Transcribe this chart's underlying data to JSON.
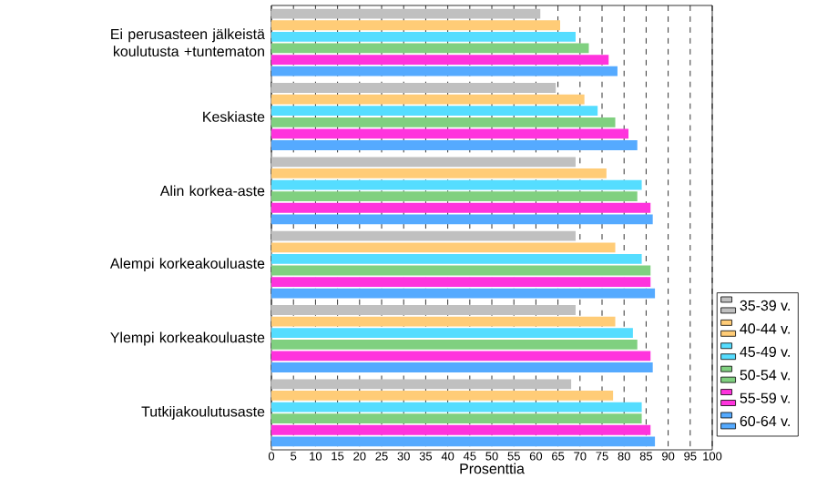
{
  "chart_data": {
    "type": "bar",
    "orientation": "horizontal",
    "xlabel": "Prosenttia",
    "categories": [
      "Ei perusasteen jälkeistä koulutusta  +tuntematon",
      "Keskiaste",
      "Alin korkea-aste",
      "Alempi korkeakouluaste",
      "Ylempi korkeakouluaste",
      "Tutkijakoulutusaste"
    ],
    "series": [
      {
        "name": "35-39 v.",
        "color": "#c0c0c0",
        "values": [
          61,
          64.5,
          69,
          69,
          69,
          68
        ]
      },
      {
        "name": "40-44 v.",
        "color": "#ffcc77",
        "values": [
          65.5,
          71,
          76,
          78,
          78,
          77.5
        ]
      },
      {
        "name": "45-49 v.",
        "color": "#55ddff",
        "values": [
          69,
          74,
          84,
          84,
          82,
          84
        ]
      },
      {
        "name": "50-54 v.",
        "color": "#80d080",
        "values": [
          72,
          78,
          83,
          86,
          83,
          84
        ]
      },
      {
        "name": "55-59 v.",
        "color": "#ff33dd",
        "values": [
          76.5,
          81,
          86,
          86,
          86,
          86
        ]
      },
      {
        "name": "60-64 v.",
        "color": "#55aaff",
        "values": [
          78.5,
          83,
          86.5,
          87,
          86.5,
          87
        ]
      }
    ],
    "xlim": [
      0,
      100
    ],
    "xticks": [
      0,
      5,
      10,
      15,
      20,
      25,
      30,
      35,
      40,
      45,
      50,
      55,
      60,
      65,
      70,
      75,
      80,
      85,
      90,
      95,
      100
    ],
    "grid": "x",
    "legend": "right"
  }
}
